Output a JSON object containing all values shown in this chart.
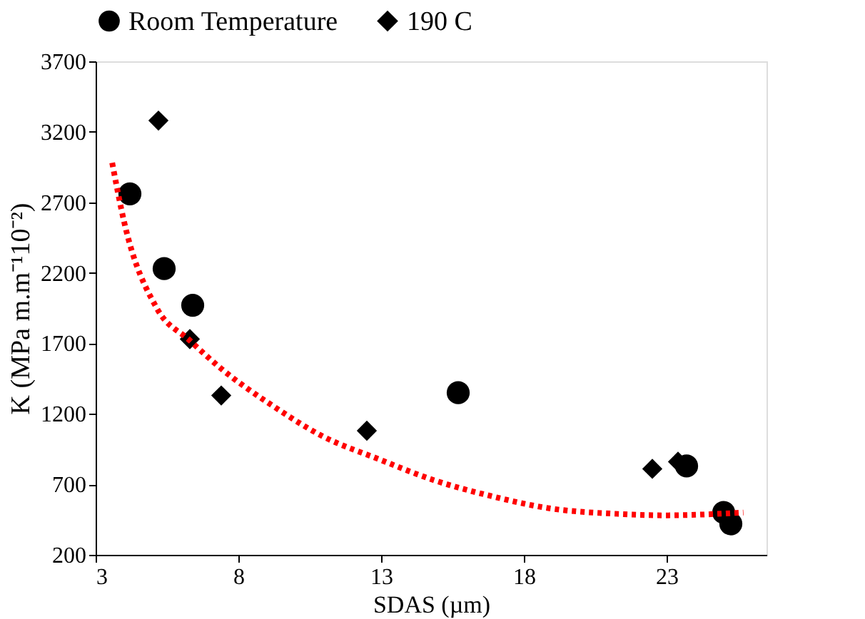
{
  "chart_data": {
    "type": "scatter",
    "xlabel": "SDAS (µm)",
    "ylabel": "K (MPa m.m⁻¹10⁻²)",
    "xlim": [
      3,
      26.5
    ],
    "xticks": [
      3,
      8,
      13,
      18,
      23
    ],
    "ylim": [
      200,
      3700
    ],
    "yticks": [
      200,
      700,
      1200,
      1700,
      2200,
      2700,
      3200,
      3700
    ],
    "grid": false,
    "legend": "top",
    "series": [
      {
        "name": "Room Temperature",
        "color": "#000000",
        "marker": "circle",
        "x": [
          4.2,
          5.4,
          6.4,
          15.7,
          23.7,
          25.0,
          25.25
        ],
        "values": [
          2760,
          2230,
          1970,
          1350,
          830,
          500,
          420
        ]
      },
      {
        "name": "190 C",
        "color": "#000000",
        "marker": "diamond",
        "x": [
          5.2,
          6.3,
          7.4,
          12.5,
          22.5,
          23.4
        ],
        "values": [
          3280,
          1730,
          1330,
          1080,
          810,
          860
        ]
      },
      {
        "type": "line",
        "color": "#ff0000",
        "line_style": "dotted",
        "marker": "none",
        "x": [
          3.58,
          4.0,
          5.14,
          6.3,
          7.4,
          9.18,
          10.96,
          12.9,
          14.84,
          16.79,
          18.89,
          21.32,
          22.94,
          25.69
        ],
        "values": [
          2980,
          2560,
          1950,
          1720,
          1520,
          1260,
          1040,
          880,
          730,
          620,
          530,
          490,
          480,
          500
        ]
      }
    ]
  }
}
